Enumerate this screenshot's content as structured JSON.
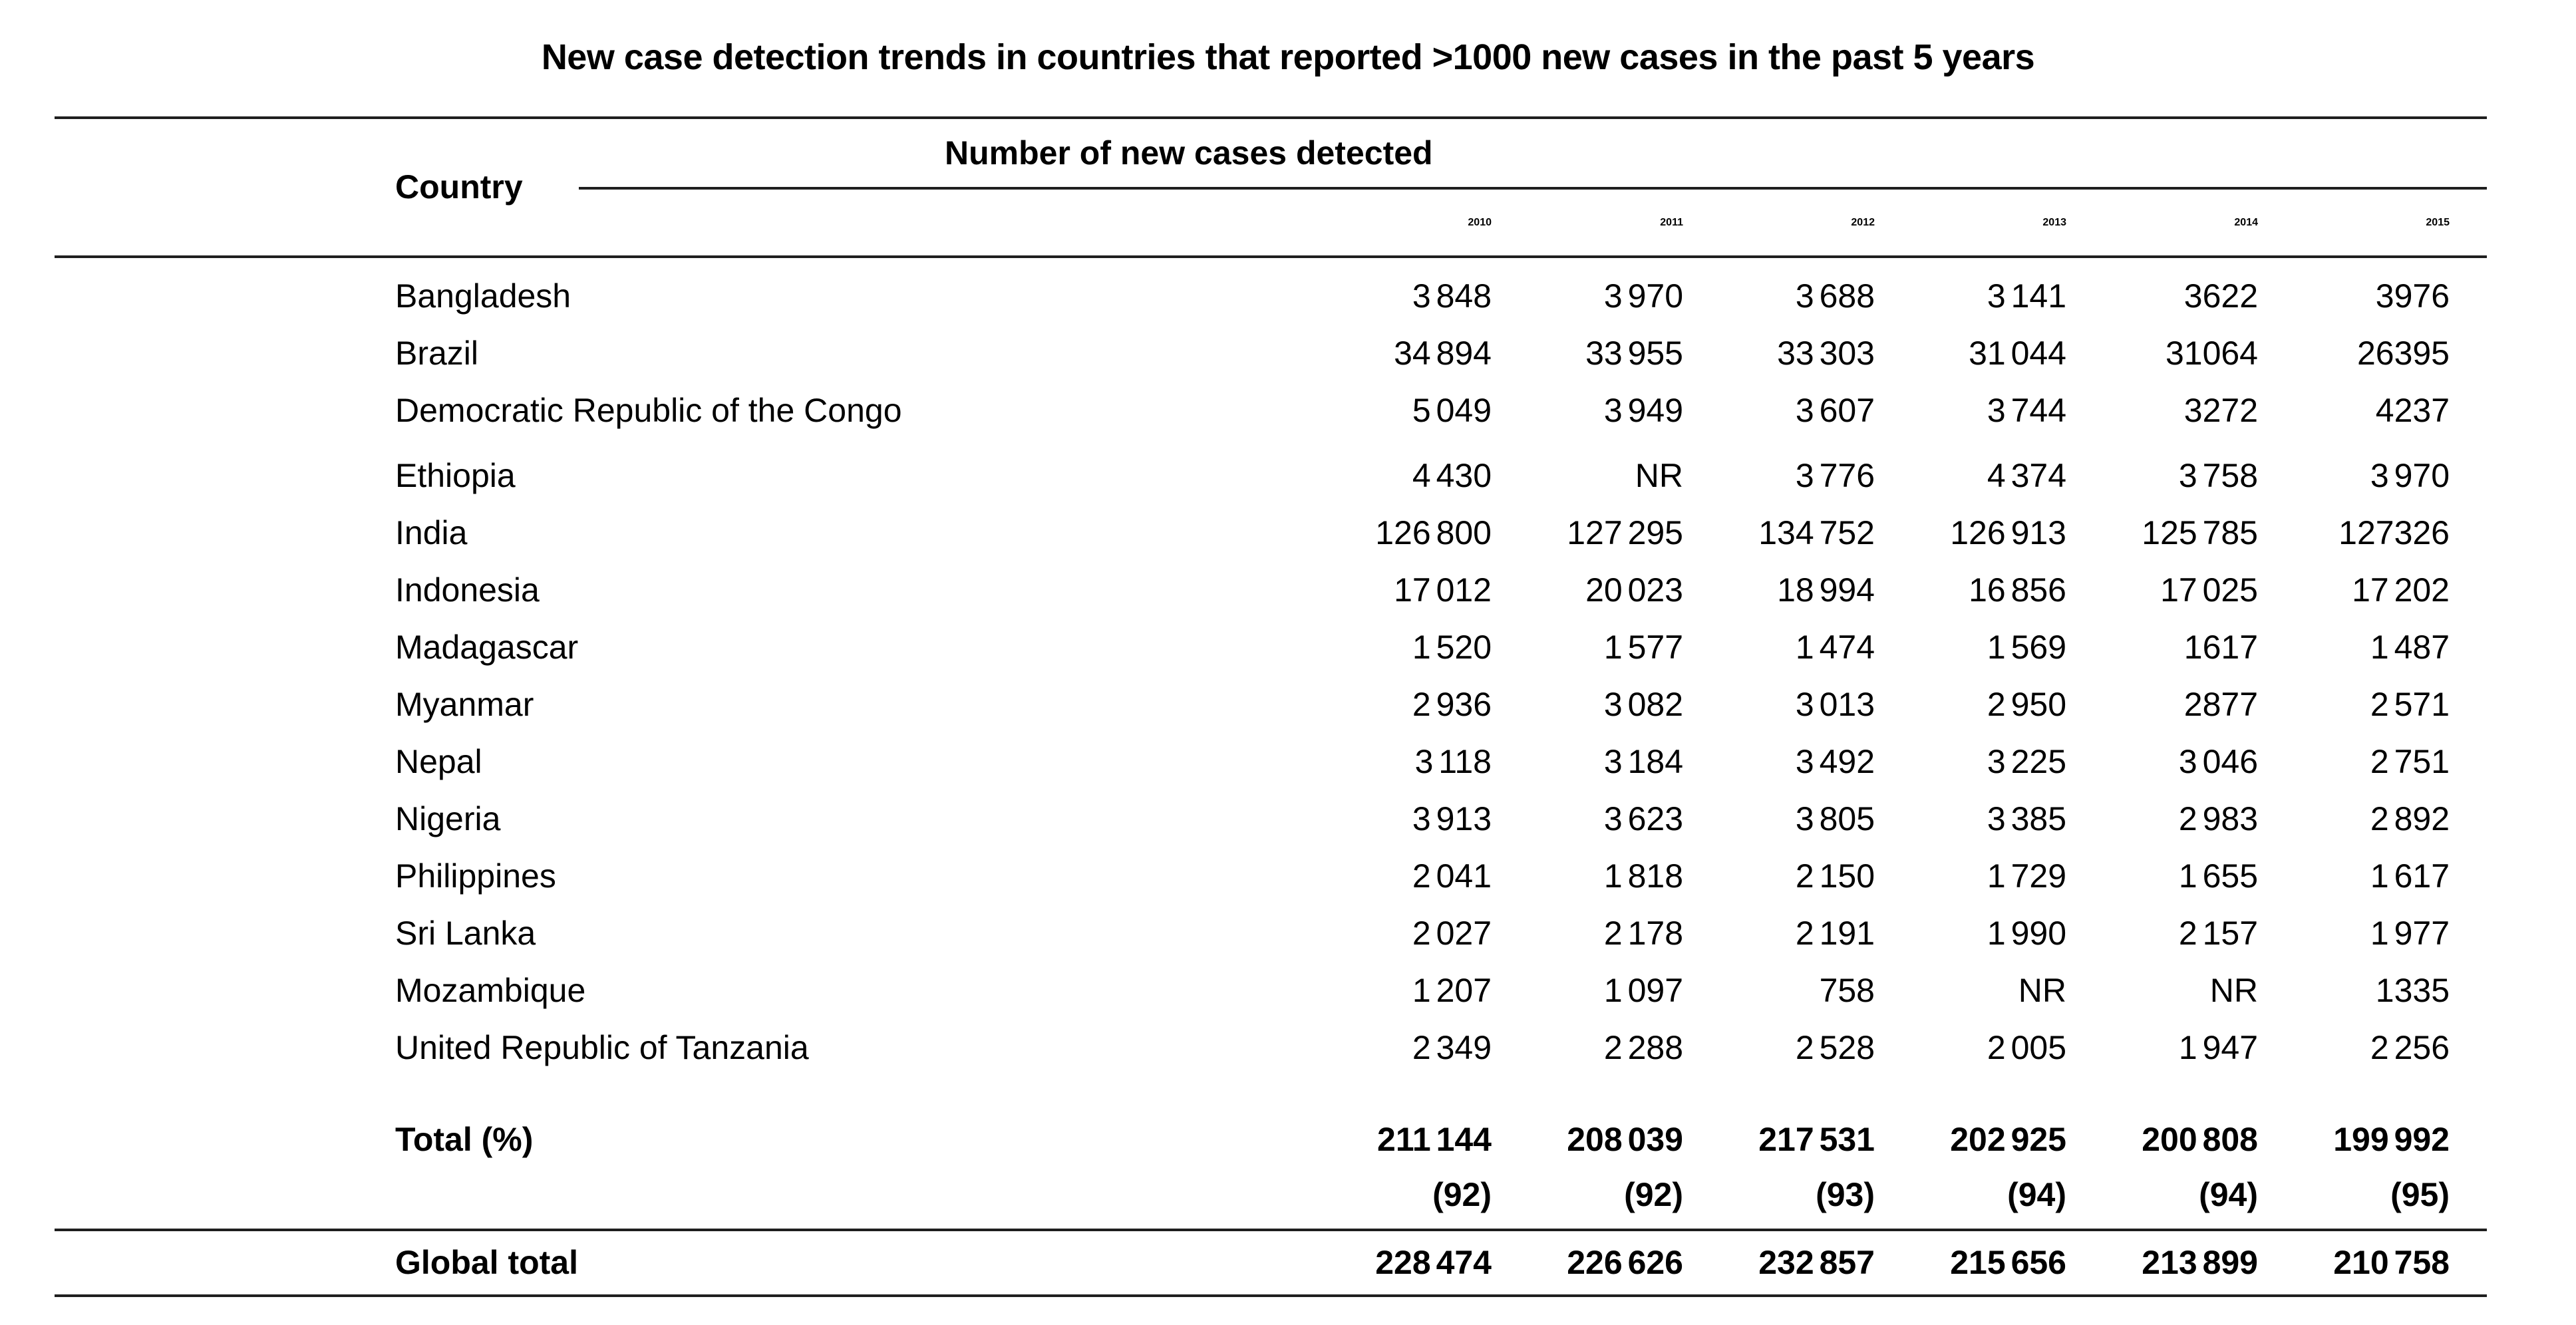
{
  "title": "New case detection trends in countries that reported >1000 new cases in the past 5 years",
  "table": {
    "country_header": "Country",
    "group_header": "Number of new cases detected",
    "years": [
      "2010",
      "2011",
      "2012",
      "2013",
      "2014",
      "2015"
    ],
    "rows": [
      {
        "country": "Bangladesh",
        "values": [
          "3 848",
          "3 970",
          "3 688",
          "3 141",
          "3622",
          "3976"
        ]
      },
      {
        "country": "Brazil",
        "values": [
          "34 894",
          "33 955",
          "33 303",
          "31 044",
          "31064",
          "26395"
        ]
      },
      {
        "country": "Democratic Republic of the Congo",
        "values": [
          "5 049",
          "3 949",
          "3 607",
          "3 744",
          "3272",
          "4237"
        ]
      },
      {
        "country": "Ethiopia",
        "gap_before": true,
        "values": [
          "4 430",
          "NR",
          "3 776",
          "4 374",
          "3 758",
          "3 970"
        ]
      },
      {
        "country": "India",
        "values": [
          "126 800",
          "127 295",
          "134 752",
          "126 913",
          "125 785",
          "127326"
        ]
      },
      {
        "country": "Indonesia",
        "values": [
          "17 012",
          "20 023",
          "18 994",
          "16 856",
          "17 025",
          "17 202"
        ]
      },
      {
        "country": "Madagascar",
        "values": [
          "1 520",
          "1 577",
          "1 474",
          "1 569",
          "1617",
          "1 487"
        ]
      },
      {
        "country": "Myanmar",
        "values": [
          "2 936",
          "3 082",
          "3 013",
          "2 950",
          "2877",
          "2 571"
        ]
      },
      {
        "country": "Nepal",
        "values": [
          "3 118",
          "3 184",
          "3 492",
          "3 225",
          "3 046",
          "2 751"
        ]
      },
      {
        "country": "Nigeria",
        "values": [
          "3 913",
          "3 623",
          "3 805",
          "3 385",
          "2 983",
          "2 892"
        ]
      },
      {
        "country": "Philippines",
        "values": [
          "2 041",
          "1 818",
          "2 150",
          "1 729",
          "1 655",
          "1 617"
        ]
      },
      {
        "country": "Sri Lanka",
        "values": [
          "2 027",
          "2 178",
          "2 191",
          "1 990",
          "2 157",
          "1 977"
        ]
      },
      {
        "country": "Mozambique",
        "values": [
          "1 207",
          "1 097",
          "758",
          "NR",
          "NR",
          "1335"
        ]
      },
      {
        "country": "United Republic of Tanzania",
        "values": [
          "2 349",
          "2 288",
          "2 528",
          "2 005",
          "1 947",
          "2 256"
        ]
      }
    ],
    "total_row": {
      "label": "Total (%)",
      "values": [
        "211 144",
        "208 039",
        "217 531",
        "202 925",
        "200 808",
        "199 992"
      ],
      "percentages": [
        "(92)",
        "(92)",
        "(93)",
        "(94)",
        "(94)",
        "(95)"
      ]
    },
    "global_row": {
      "label": "Global total",
      "values": [
        "228 474",
        "226 626",
        "232 857",
        "215 656",
        "213 899",
        "210 758"
      ]
    }
  }
}
